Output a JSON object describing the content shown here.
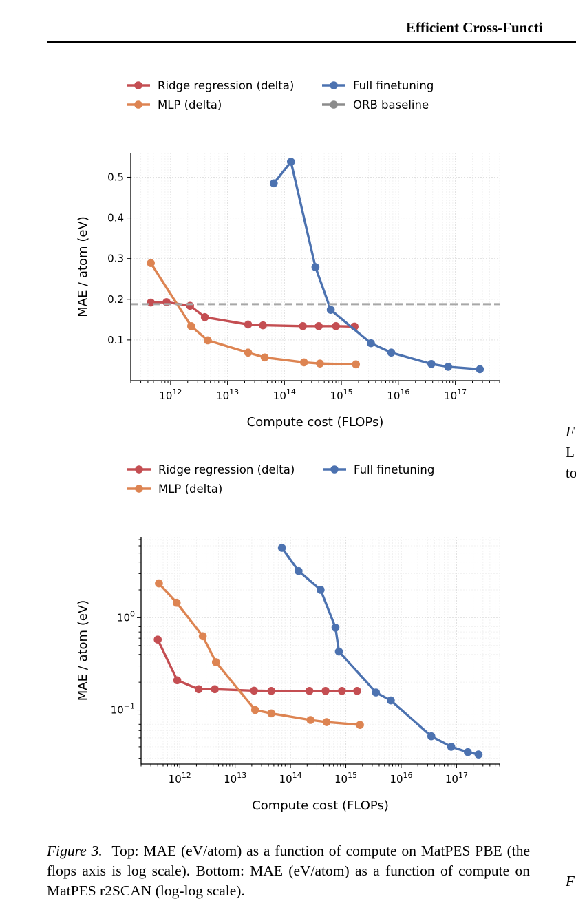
{
  "header": {
    "title": "Efficient Cross-Functi"
  },
  "colors": {
    "ridge": "#c44e52",
    "mlp": "#dd8452",
    "full": "#4c72b0",
    "orb": "#8c8c8c",
    "baseline_line": "#a8a8a8"
  },
  "chart_data": [
    {
      "type": "line",
      "xlabel": "Compute cost (FLOPs)",
      "ylabel": "MAE / atom (eV)",
      "xscale": "log",
      "yscale": "linear",
      "xlim": [
        200000000000.0,
        6e+17
      ],
      "ylim": [
        0.0,
        0.56
      ],
      "xticks": [
        1000000000000.0,
        10000000000000.0,
        100000000000000.0,
        1000000000000000.0,
        1e+16,
        1e+17
      ],
      "xtick_labels": [
        [
          "10",
          "12"
        ],
        [
          "10",
          "13"
        ],
        [
          "10",
          "14"
        ],
        [
          "10",
          "15"
        ],
        [
          "10",
          "16"
        ],
        [
          "10",
          "17"
        ]
      ],
      "yticks": [
        0.1,
        0.2,
        0.3,
        0.4,
        0.5
      ],
      "ytick_labels": [
        "0.1",
        "0.2",
        "0.3",
        "0.4",
        "0.5"
      ],
      "grid": true,
      "legend_position": "top-left (above plot)",
      "legend": [
        "Ridge regression (delta)",
        "Full finetuning",
        "MLP (delta)",
        "ORB baseline"
      ],
      "series": [
        {
          "name": "Ridge regression (delta)",
          "color": "#c44e52",
          "x": [
            450000000000.0,
            850000000000.0,
            2200000000000.0,
            4000000000000.0,
            23000000000000.0,
            42000000000000.0,
            210000000000000.0,
            400000000000000.0,
            800000000000000.0,
            1700000000000000.0
          ],
          "y": [
            0.192,
            0.193,
            0.184,
            0.156,
            0.138,
            0.136,
            0.134,
            0.134,
            0.134,
            0.133
          ]
        },
        {
          "name": "MLP (delta)",
          "color": "#dd8452",
          "x": [
            450000000000.0,
            2300000000000.0,
            4500000000000.0,
            23000000000000.0,
            45000000000000.0,
            220000000000000.0,
            420000000000000.0,
            1800000000000000.0
          ],
          "y": [
            0.289,
            0.134,
            0.099,
            0.069,
            0.057,
            0.045,
            0.042,
            0.04
          ]
        },
        {
          "name": "Full finetuning",
          "color": "#4c72b0",
          "x": [
            65000000000000.0,
            130000000000000.0,
            350000000000000.0,
            650000000000000.0,
            3300000000000000.0,
            7500000000000000.0,
            3.8e+16,
            7.5e+16,
            2.7e+17
          ],
          "y": [
            0.485,
            0.538,
            0.279,
            0.174,
            0.092,
            0.069,
            0.041,
            0.034,
            0.028
          ]
        },
        {
          "name": "ORB baseline",
          "color": "#8c8c8c",
          "style": "dashed",
          "y": [
            0.188
          ]
        }
      ]
    },
    {
      "type": "line",
      "xlabel": "Compute cost (FLOPs)",
      "ylabel": "MAE / atom (eV)",
      "xscale": "log",
      "yscale": "log",
      "xlim": [
        200000000000.0,
        6e+17
      ],
      "ylim": [
        0.026,
        7.5
      ],
      "xticks": [
        1000000000000.0,
        10000000000000.0,
        100000000000000.0,
        1000000000000000.0,
        1e+16,
        1e+17
      ],
      "xtick_labels": [
        [
          "10",
          "12"
        ],
        [
          "10",
          "13"
        ],
        [
          "10",
          "14"
        ],
        [
          "10",
          "15"
        ],
        [
          "10",
          "16"
        ],
        [
          "10",
          "17"
        ]
      ],
      "yticks": [
        0.1,
        1.0
      ],
      "ytick_labels": [
        [
          "10",
          "−1"
        ],
        [
          "10",
          "0"
        ]
      ],
      "grid": true,
      "legend_position": "top-left (above plot)",
      "legend": [
        "Ridge regression (delta)",
        "Full finetuning",
        "MLP (delta)"
      ],
      "series": [
        {
          "name": "Ridge regression (delta)",
          "color": "#c44e52",
          "x": [
            400000000000.0,
            900000000000.0,
            2200000000000.0,
            4300000000000.0,
            22000000000000.0,
            45000000000000.0,
            220000000000000.0,
            430000000000000.0,
            850000000000000.0,
            1600000000000000.0
          ],
          "y": [
            0.58,
            0.21,
            0.168,
            0.168,
            0.162,
            0.161,
            0.161,
            0.161,
            0.161,
            0.161
          ]
        },
        {
          "name": "MLP (delta)",
          "color": "#dd8452",
          "x": [
            420000000000.0,
            880000000000.0,
            2600000000000.0,
            4500000000000.0,
            23000000000000.0,
            45000000000000.0,
            230000000000000.0,
            450000000000000.0,
            1800000000000000.0
          ],
          "y": [
            2.35,
            1.45,
            0.63,
            0.33,
            0.1,
            0.092,
            0.078,
            0.074,
            0.069
          ]
        },
        {
          "name": "Full finetuning",
          "color": "#4c72b0",
          "x": [
            70000000000000.0,
            140000000000000.0,
            350000000000000.0,
            650000000000000.0,
            750000000000000.0,
            3500000000000000.0,
            6500000000000000.0,
            3.5e+16,
            8e+16,
            1.6e+17,
            2.5e+17
          ],
          "y": [
            5.7,
            3.2,
            2.0,
            0.78,
            0.43,
            0.155,
            0.127,
            0.052,
            0.04,
            0.035,
            0.033
          ]
        }
      ]
    }
  ],
  "side_fragments": [
    "F",
    "L",
    "to",
    "F"
  ],
  "caption": {
    "label": "Figure 3.",
    "text": "Top: MAE (eV/atom) as a function of compute on MatPES PBE (the flops axis is log scale). Bottom: MAE (eV/atom) as a function of compute on MatPES r2SCAN (log-log scale)."
  }
}
